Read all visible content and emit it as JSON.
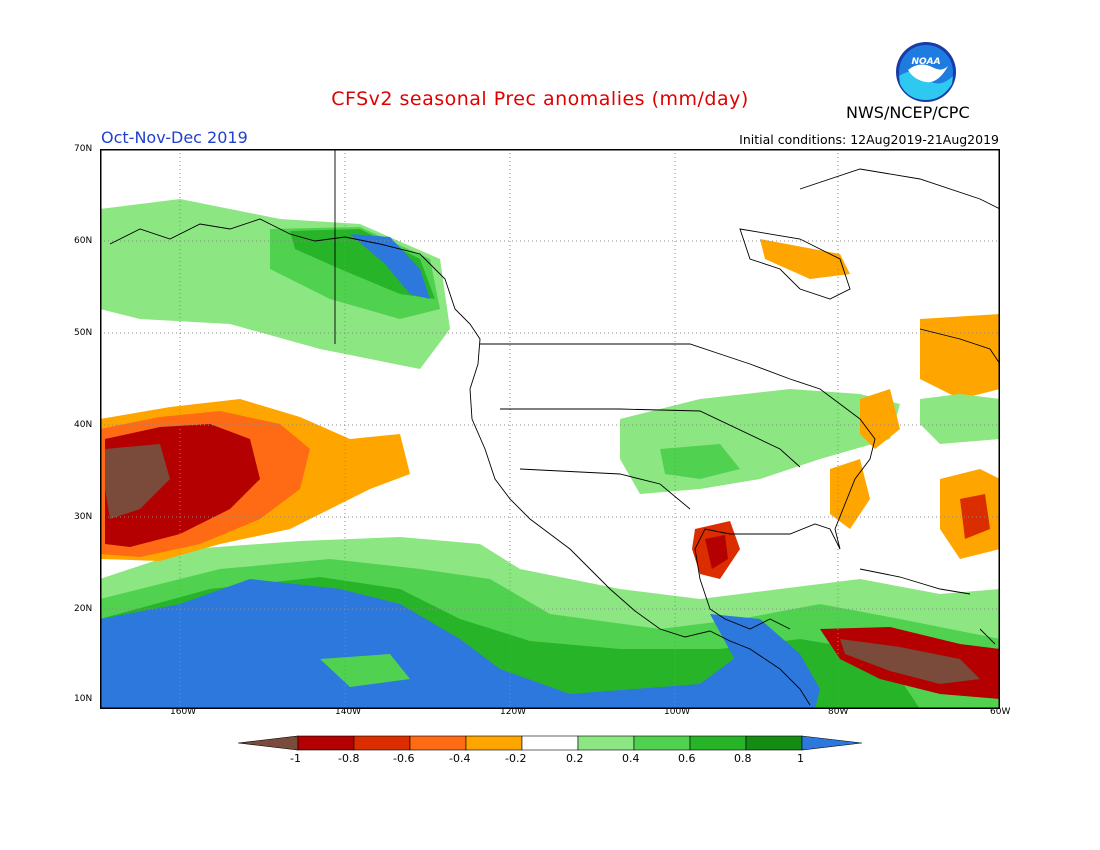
{
  "title": "CFSv2 seasonal Prec anomalies (mm/day)",
  "period": "Oct-Nov-Dec 2019",
  "initial_conditions": "Initial conditions: 12Aug2019-21Aug2019",
  "agency": "NWS/NCEP/CPC",
  "logo_text": "NOAA",
  "lat_labels": [
    "70N",
    "60N",
    "50N",
    "40N",
    "30N",
    "20N",
    "10N"
  ],
  "lon_labels": [
    "160W",
    "140W",
    "120W",
    "100W",
    "80W",
    "60W"
  ],
  "legend": {
    "ticks": [
      "-1",
      "-0.8",
      "-0.6",
      "-0.4",
      "-0.2",
      "0.2",
      "0.4",
      "0.6",
      "0.8",
      "1"
    ],
    "colors": [
      "#7a4a3a",
      "#b40000",
      "#dc2d00",
      "#ff6a14",
      "#ffa500",
      "#ffffff",
      "#8ce682",
      "#50d250",
      "#28b428",
      "#148c14",
      "#2c78dc"
    ]
  }
}
